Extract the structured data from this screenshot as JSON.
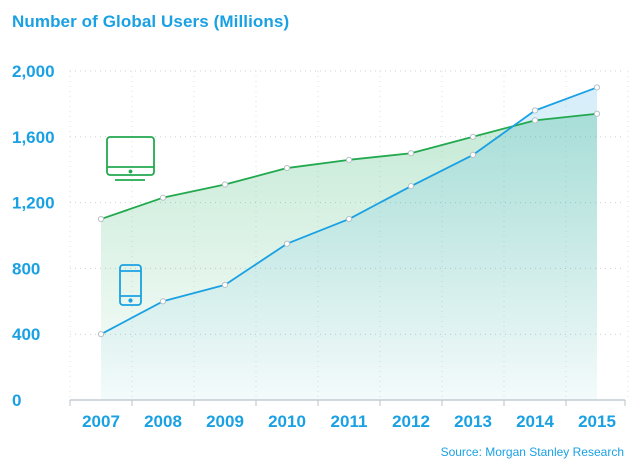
{
  "chart_data": {
    "type": "line",
    "title": "Number of Global Users (Millions)",
    "source": "Source: Morgan Stanley Research",
    "categories": [
      "2007",
      "2008",
      "2009",
      "2010",
      "2011",
      "2012",
      "2013",
      "2014",
      "2015"
    ],
    "ylim": [
      0,
      2000
    ],
    "yticks": [
      0,
      400,
      800,
      1200,
      1600,
      2000
    ],
    "ytick_labels": [
      "0",
      "400",
      "800",
      "1,200",
      "1,600",
      "2,000"
    ],
    "grid": true,
    "series": [
      {
        "icon": "desktop-monitor-icon",
        "color": "#22a94f",
        "values": [
          1100,
          1230,
          1310,
          1410,
          1460,
          1500,
          1600,
          1700,
          1740
        ]
      },
      {
        "icon": "mobile-phone-icon",
        "color": "#1aa1e3",
        "values": [
          400,
          600,
          700,
          950,
          1100,
          1300,
          1490,
          1760,
          1900
        ]
      }
    ]
  }
}
